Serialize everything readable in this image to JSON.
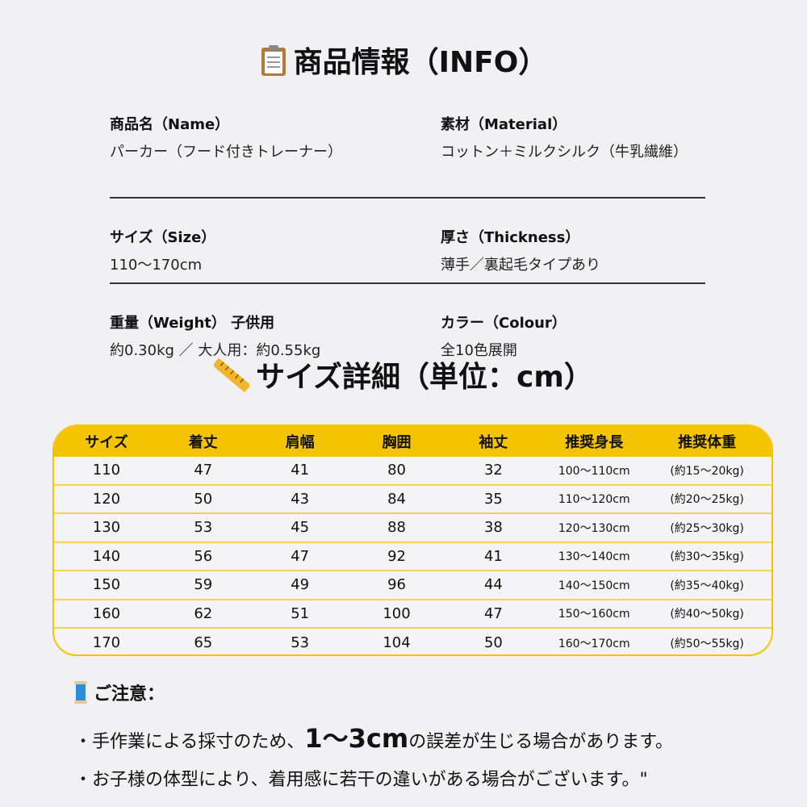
{
  "title": "商品情報（INFO）",
  "title_icon": "clipboard-icon",
  "info": [
    [
      {
        "label": "商品名（Name）",
        "value": "パーカー（フード付きトレーナー）"
      },
      {
        "label": "素材（Material）",
        "value": "コットン＋ミルクシルク（牛乳繊維）"
      }
    ],
    [
      {
        "label": "サイズ（Size）",
        "value": "110〜170cm"
      },
      {
        "label": "厚さ（Thickness）",
        "value": "薄手／裏起毛タイプあり"
      }
    ],
    [
      {
        "label": "重量（Weight） 子供用",
        "value": "約0.30kg ／ 大人用：約0.55kg"
      },
      {
        "label": "カラー（Colour）",
        "value": "全10色展開"
      }
    ]
  ],
  "size_title": "サイズ詳細（単位：cm）",
  "size_icon": "ruler-icon",
  "table": {
    "headers": [
      "サイズ",
      "着丈",
      "肩幅",
      "胸囲",
      "袖丈",
      "推奨身長",
      "推奨体重"
    ],
    "rows": [
      [
        "110",
        "47",
        "41",
        "80",
        "32",
        "100〜110cm",
        "(約15〜20kg)"
      ],
      [
        "120",
        "50",
        "43",
        "84",
        "35",
        "110〜120cm",
        "(約20〜25kg)"
      ],
      [
        "130",
        "53",
        "45",
        "88",
        "38",
        "120〜130cm",
        "(約25〜30kg)"
      ],
      [
        "140",
        "56",
        "47",
        "92",
        "41",
        "130〜140cm",
        "(約30〜35kg)"
      ],
      [
        "150",
        "59",
        "49",
        "96",
        "44",
        "140〜150cm",
        "(約35〜40kg)"
      ],
      [
        "160",
        "62",
        "51",
        "100",
        "47",
        "150〜160cm",
        "(約40〜50kg)"
      ],
      [
        "170",
        "65",
        "53",
        "104",
        "50",
        "160〜170cm",
        "(約50〜55kg)"
      ]
    ],
    "header_color": "#f5c400"
  },
  "note": {
    "icon": "thread-spool-icon",
    "heading": "ご注意：",
    "line1_pre": "・手作業による採寸のため、",
    "line1_em": "1〜3cm",
    "line1_post": "の誤差が生じる場合があります。",
    "line2": "・お子様の体型により、着用感に若干の違いがある場合がございます。\""
  }
}
